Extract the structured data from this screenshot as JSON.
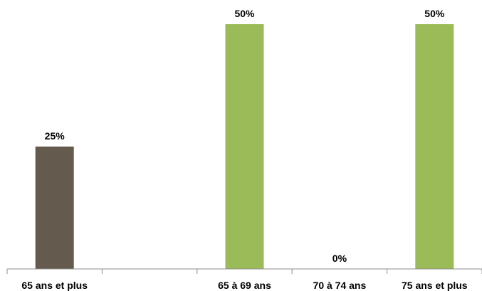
{
  "chart_data": {
    "type": "bar",
    "categories": [
      "65 ans et plus",
      "",
      "65 à 69 ans",
      "70 à 74 ans",
      "75 ans et plus"
    ],
    "values": [
      25,
      null,
      50,
      0,
      50
    ],
    "value_labels": [
      "25%",
      "",
      "50%",
      "0%",
      "50%"
    ],
    "bar_colors": [
      "#655a4e",
      "#655a4e",
      "#9bbb59",
      "#9bbb59",
      "#9bbb59"
    ],
    "ylim": [
      0,
      50
    ],
    "grid": false,
    "title": "",
    "xlabel": "",
    "ylabel": ""
  }
}
